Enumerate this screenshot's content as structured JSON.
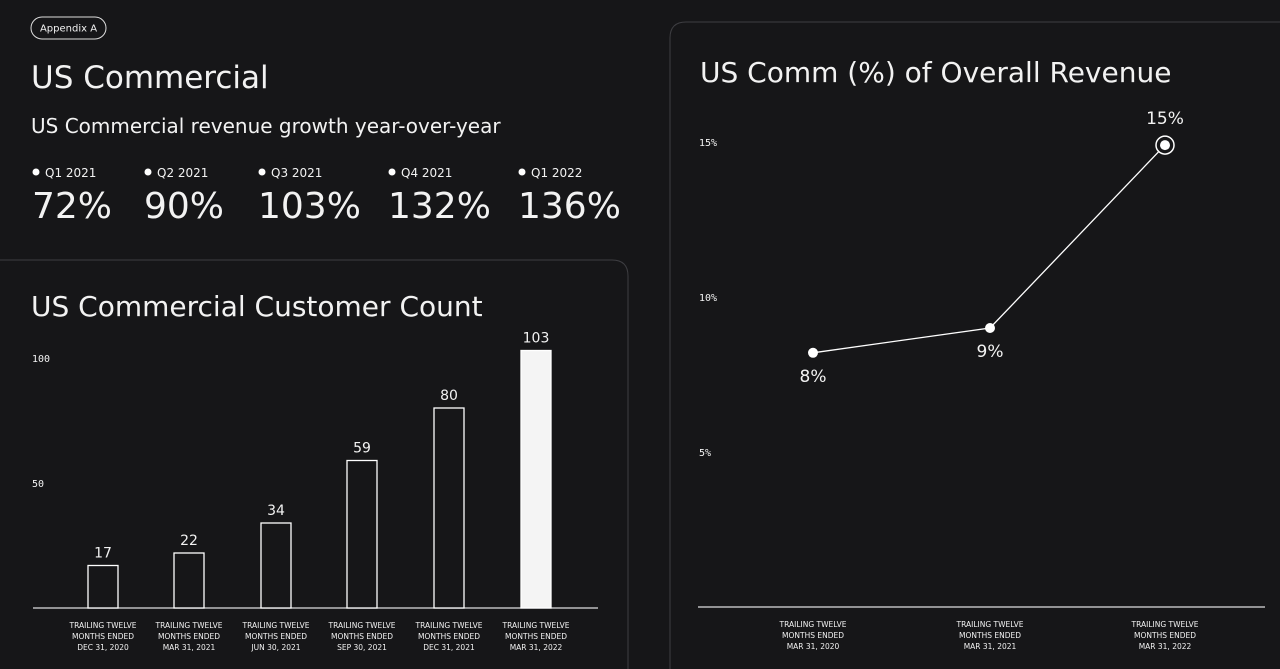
{
  "header": {
    "badge": "Appendix A",
    "title": "US Commercial",
    "subtitle": "US Commercial revenue growth year-over-year",
    "kpis": [
      {
        "label": "Q1 2021",
        "value": "72%"
      },
      {
        "label": "Q2 2021",
        "value": "90%"
      },
      {
        "label": "Q3 2021",
        "value": "103%"
      },
      {
        "label": "Q4 2021",
        "value": "132%"
      },
      {
        "label": "Q1 2022",
        "value": "136%"
      }
    ]
  },
  "chart_data": [
    {
      "type": "bar",
      "title": "US Commercial Customer Count",
      "categories": [
        [
          "TRAILING TWELVE",
          "MONTHS ENDED",
          "DEC 31, 2020"
        ],
        [
          "TRAILING TWELVE",
          "MONTHS ENDED",
          "MAR 31, 2021"
        ],
        [
          "TRAILING TWELVE",
          "MONTHS ENDED",
          "JUN 30, 2021"
        ],
        [
          "TRAILING TWELVE",
          "MONTHS ENDED",
          "SEP 30, 2021"
        ],
        [
          "TRAILING TWELVE",
          "MONTHS ENDED",
          "DEC 31, 2021"
        ],
        [
          "TRAILING TWELVE",
          "MONTHS ENDED",
          "MAR 31, 2022"
        ]
      ],
      "values": [
        17,
        22,
        34,
        59,
        80,
        103
      ],
      "colors": [
        "#161618",
        "#161618",
        "#161618",
        "#161618",
        "#161618",
        "#f4f4f4"
      ],
      "ylim": [
        0,
        110
      ],
      "yticks": [
        50,
        100
      ]
    },
    {
      "type": "line",
      "title": "US Comm (%) of Overall Revenue",
      "categories": [
        [
          "TRAILING TWELVE",
          "MONTHS ENDED",
          "MAR 31, 2020"
        ],
        [
          "TRAILING TWELVE",
          "MONTHS ENDED",
          "MAR 31, 2021"
        ],
        [
          "TRAILING TWELVE",
          "MONTHS ENDED",
          "MAR 31, 2022"
        ]
      ],
      "values": [
        8.2,
        9,
        14.9
      ],
      "value_labels": [
        "8%",
        "9%",
        "15%"
      ],
      "color": "#ffffff",
      "ylim": [
        0,
        16.5
      ],
      "yticks": [
        {
          "value": 5,
          "label": "5%"
        },
        {
          "value": 10,
          "label": "10%"
        },
        {
          "value": 15,
          "label": "15%"
        }
      ]
    }
  ]
}
